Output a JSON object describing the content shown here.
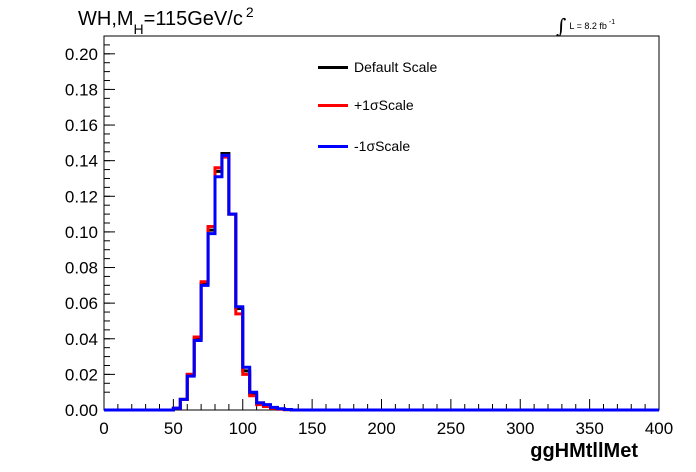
{
  "title": {
    "main": "WH,M",
    "sub": "H",
    "rest": "=115GeV/c",
    "sup": "2"
  },
  "luminosity": {
    "symbol": "∫",
    "text": "L = 8.2 fb",
    "sup": "-1"
  },
  "chart_data": {
    "type": "line",
    "xlabel": "ggHMtllMet",
    "ylabel": "",
    "xlim": [
      0,
      400
    ],
    "ylim": [
      0,
      0.21
    ],
    "grid": false,
    "legend_position": "top-center",
    "x_ticks": [
      "0",
      "50",
      "100",
      "150",
      "200",
      "250",
      "300",
      "350",
      "400"
    ],
    "y_ticks": [
      "0.00",
      "0.02",
      "0.04",
      "0.06",
      "0.08",
      "0.10",
      "0.12",
      "0.14",
      "0.16",
      "0.18",
      "0.20"
    ],
    "bin_edges": [
      0,
      10,
      20,
      30,
      40,
      50,
      55,
      60,
      65,
      70,
      75,
      80,
      85,
      90,
      95,
      100,
      105,
      110,
      115,
      120,
      125,
      130,
      135,
      140,
      145,
      150,
      155,
      160,
      165,
      170,
      175,
      180,
      190,
      200,
      400
    ],
    "series": [
      {
        "name": "Default Scale",
        "color": "#000000",
        "values": [
          0,
          0,
          0,
          0,
          0,
          0.001,
          0.006,
          0.02,
          0.04,
          0.071,
          0.101,
          0.134,
          0.144,
          0.11,
          0.057,
          0.022,
          0.009,
          0.004,
          0.002,
          0.001,
          0.0005,
          0.0002,
          0,
          0,
          0,
          0,
          0,
          0,
          0,
          0,
          0,
          0,
          0,
          0
        ]
      },
      {
        "name": "+1σScale",
        "color": "#ff0000",
        "values": [
          0,
          0,
          0,
          0,
          0,
          0.001,
          0.006,
          0.02,
          0.041,
          0.072,
          0.103,
          0.136,
          0.142,
          0.11,
          0.054,
          0.02,
          0.008,
          0.003,
          0.002,
          0.001,
          0.0005,
          0.0002,
          0,
          0,
          0,
          0,
          0,
          0,
          0,
          0,
          0,
          0,
          0,
          0
        ]
      },
      {
        "name": "-1σScale",
        "color": "#0000ff",
        "values": [
          0,
          0,
          0,
          0,
          0,
          0.001,
          0.006,
          0.019,
          0.039,
          0.07,
          0.099,
          0.131,
          0.143,
          0.11,
          0.058,
          0.024,
          0.01,
          0.004,
          0.003,
          0.0015,
          0.0007,
          0.0003,
          0,
          0,
          0,
          0,
          0,
          0,
          0,
          0,
          0,
          0,
          0,
          0
        ]
      }
    ]
  }
}
